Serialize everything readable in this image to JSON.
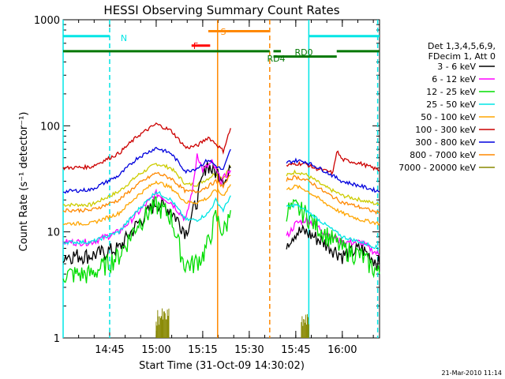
{
  "chart_data": {
    "type": "line",
    "title": "HESSI Observing Summary Count Rates",
    "xlabel": "Start Time (31-Oct-09 14:30:02)",
    "ylabel": "Count Rate (s⁻¹ detector⁻¹)",
    "yscale": "log",
    "xlim": [
      14.5,
      16.2
    ],
    "ylim": [
      1,
      1000
    ],
    "x_ticks": [
      "14:45",
      "15:00",
      "15:15",
      "15:30",
      "15:45",
      "16:00"
    ],
    "x_tick_values": [
      14.75,
      15.0,
      15.25,
      15.5,
      15.75,
      16.0
    ],
    "y_ticks": [
      "1",
      "10",
      "100",
      "1000"
    ],
    "y_tick_values": [
      1,
      10,
      100,
      1000
    ],
    "legend_header": [
      "Det 1,3,4,5,6,9,",
      "FDecim 1, Att 0"
    ],
    "legend_position": "right",
    "footer": "21-Mar-2010 11:14",
    "series": [
      {
        "name": "3 - 6 keV",
        "color": "#000000",
        "values": [
          [
            14.5,
            6
          ],
          [
            14.65,
            6
          ],
          [
            14.8,
            7
          ],
          [
            14.9,
            12
          ],
          [
            15.0,
            19
          ],
          [
            15.08,
            16
          ],
          [
            15.16,
            10
          ],
          [
            15.22,
            20
          ],
          [
            15.27,
            45
          ],
          [
            15.3,
            38
          ],
          [
            15.35,
            35
          ],
          [
            15.38,
            30
          ],
          [
            15.4,
            40
          ],
          [
            15.7,
            8
          ],
          [
            15.75,
            10
          ],
          [
            15.8,
            10
          ],
          [
            15.85,
            9
          ],
          [
            15.9,
            8
          ],
          [
            16.0,
            6
          ],
          [
            16.1,
            7
          ],
          [
            16.2,
            5
          ]
        ]
      },
      {
        "name": "6 - 12 keV",
        "color": "#ff00ff",
        "values": [
          [
            14.5,
            8
          ],
          [
            14.65,
            8
          ],
          [
            14.8,
            10
          ],
          [
            14.9,
            15
          ],
          [
            15.0,
            23
          ],
          [
            15.08,
            19
          ],
          [
            15.16,
            13
          ],
          [
            15.2,
            28
          ],
          [
            15.22,
            55
          ],
          [
            15.25,
            38
          ],
          [
            15.3,
            45
          ],
          [
            15.35,
            30
          ],
          [
            15.38,
            35
          ],
          [
            15.4,
            38
          ],
          [
            15.7,
            9
          ],
          [
            15.75,
            12
          ],
          [
            15.8,
            13
          ],
          [
            15.85,
            12
          ],
          [
            15.9,
            10
          ],
          [
            16.0,
            8
          ],
          [
            16.1,
            8
          ],
          [
            16.2,
            6
          ]
        ]
      },
      {
        "name": "12 - 25 keV",
        "color": "#00dd00",
        "values": [
          [
            14.5,
            4
          ],
          [
            14.65,
            4
          ],
          [
            14.8,
            6
          ],
          [
            14.9,
            12
          ],
          [
            15.0,
            18
          ],
          [
            15.08,
            14
          ],
          [
            15.15,
            5
          ],
          [
            15.2,
            5
          ],
          [
            15.25,
            6
          ],
          [
            15.28,
            8
          ],
          [
            15.32,
            14
          ],
          [
            15.36,
            10
          ],
          [
            15.38,
            12
          ],
          [
            15.4,
            16
          ],
          [
            15.7,
            16
          ],
          [
            15.75,
            17
          ],
          [
            15.8,
            15
          ],
          [
            15.85,
            12
          ],
          [
            15.9,
            10
          ],
          [
            16.0,
            7
          ],
          [
            16.1,
            6
          ],
          [
            16.2,
            4
          ]
        ]
      },
      {
        "name": "25 - 50 keV",
        "color": "#00e5e5",
        "values": [
          [
            14.5,
            8
          ],
          [
            14.65,
            8
          ],
          [
            14.8,
            10
          ],
          [
            14.9,
            16
          ],
          [
            15.0,
            24
          ],
          [
            15.08,
            20
          ],
          [
            15.16,
            13
          ],
          [
            15.22,
            13
          ],
          [
            15.28,
            15
          ],
          [
            15.32,
            20
          ],
          [
            15.36,
            16
          ],
          [
            15.4,
            22
          ],
          [
            15.7,
            17
          ],
          [
            15.75,
            18
          ],
          [
            15.8,
            16
          ],
          [
            15.85,
            14
          ],
          [
            15.9,
            12
          ],
          [
            16.0,
            9
          ],
          [
            16.1,
            8
          ],
          [
            16.2,
            7
          ]
        ]
      },
      {
        "name": "50 - 100 keV",
        "color": "#ffa500",
        "values": [
          [
            14.5,
            12
          ],
          [
            14.65,
            12
          ],
          [
            14.8,
            15
          ],
          [
            14.9,
            22
          ],
          [
            15.0,
            30
          ],
          [
            15.08,
            26
          ],
          [
            15.16,
            19
          ],
          [
            15.22,
            19
          ],
          [
            15.28,
            21
          ],
          [
            15.32,
            25
          ],
          [
            15.36,
            22
          ],
          [
            15.4,
            28
          ],
          [
            15.7,
            25
          ],
          [
            15.75,
            27
          ],
          [
            15.8,
            25
          ],
          [
            15.85,
            22
          ],
          [
            15.9,
            19
          ],
          [
            16.0,
            15
          ],
          [
            16.1,
            13
          ],
          [
            16.2,
            12
          ]
        ]
      },
      {
        "name": "100 - 300 keV",
        "color": "#cc0000",
        "values": [
          [
            14.5,
            40
          ],
          [
            14.65,
            41
          ],
          [
            14.8,
            55
          ],
          [
            14.9,
            80
          ],
          [
            15.0,
            104
          ],
          [
            15.08,
            90
          ],
          [
            15.16,
            62
          ],
          [
            15.22,
            65
          ],
          [
            15.28,
            78
          ],
          [
            15.32,
            68
          ],
          [
            15.36,
            58
          ],
          [
            15.4,
            95
          ],
          [
            15.7,
            42
          ],
          [
            15.75,
            44
          ],
          [
            15.8,
            44
          ],
          [
            15.85,
            40
          ],
          [
            15.9,
            38
          ],
          [
            15.95,
            36
          ],
          [
            15.97,
            58
          ],
          [
            16.0,
            48
          ],
          [
            16.1,
            44
          ],
          [
            16.2,
            38
          ]
        ]
      },
      {
        "name": "300 - 800 keV",
        "color": "#0000dd",
        "values": [
          [
            14.5,
            24
          ],
          [
            14.65,
            25
          ],
          [
            14.8,
            34
          ],
          [
            14.9,
            50
          ],
          [
            15.0,
            62
          ],
          [
            15.08,
            55
          ],
          [
            15.16,
            37
          ],
          [
            15.22,
            40
          ],
          [
            15.28,
            48
          ],
          [
            15.32,
            42
          ],
          [
            15.36,
            38
          ],
          [
            15.4,
            60
          ],
          [
            15.7,
            45
          ],
          [
            15.75,
            47
          ],
          [
            15.8,
            46
          ],
          [
            15.85,
            42
          ],
          [
            15.9,
            38
          ],
          [
            16.0,
            30
          ],
          [
            16.1,
            27
          ],
          [
            16.2,
            24
          ]
        ]
      },
      {
        "name": "800 - 7000 keV",
        "color": "#ff8800",
        "values": [
          [
            14.5,
            16
          ],
          [
            14.65,
            16
          ],
          [
            14.8,
            20
          ],
          [
            14.9,
            28
          ],
          [
            15.0,
            36
          ],
          [
            15.08,
            32
          ],
          [
            15.16,
            24
          ],
          [
            15.22,
            24
          ],
          [
            15.28,
            27
          ],
          [
            15.32,
            30
          ],
          [
            15.36,
            27
          ],
          [
            15.4,
            34
          ],
          [
            15.7,
            31
          ],
          [
            15.75,
            33
          ],
          [
            15.8,
            31
          ],
          [
            15.85,
            28
          ],
          [
            15.9,
            24
          ],
          [
            16.0,
            19
          ],
          [
            16.1,
            17
          ],
          [
            16.2,
            15
          ]
        ]
      },
      {
        "name": "7000 - 20000 keV",
        "color": "#888800",
        "values": [
          [
            15.0,
            1.6
          ],
          [
            15.02,
            1.8
          ],
          [
            15.04,
            1.5
          ],
          [
            15.06,
            1.7
          ],
          [
            15.79,
            1.6
          ],
          [
            15.81,
            1.5
          ]
        ]
      }
    ],
    "yellow_series": {
      "color": "#cccc00",
      "values": [
        [
          14.5,
          18
        ],
        [
          14.65,
          18
        ],
        [
          14.8,
          24
        ],
        [
          14.9,
          34
        ],
        [
          15.0,
          44
        ],
        [
          15.08,
          40
        ],
        [
          15.16,
          28
        ],
        [
          15.22,
          28
        ],
        [
          15.28,
          32
        ],
        [
          15.32,
          36
        ],
        [
          15.36,
          32
        ],
        [
          15.4,
          42
        ],
        [
          15.7,
          34
        ],
        [
          15.75,
          37
        ],
        [
          15.8,
          35
        ],
        [
          15.85,
          31
        ],
        [
          15.9,
          27
        ],
        [
          16.0,
          22
        ],
        [
          16.1,
          20
        ],
        [
          16.2,
          18
        ]
      ]
    },
    "flags": [
      {
        "label": "N",
        "color": "#00e5e5",
        "segments": [
          [
            14.5,
            14.75
          ],
          [
            15.82,
            16.2
          ]
        ],
        "y": 700
      },
      {
        "label": "S",
        "color": "#ff8800",
        "segments": [
          [
            15.28,
            15.61
          ]
        ],
        "y": 780
      },
      {
        "label": "F",
        "color": "#ff0000",
        "segments": [
          [
            15.19,
            15.29
          ]
        ],
        "y": 570
      },
      {
        "label": "RD0",
        "color": "#007700",
        "segments": [
          [
            14.5,
            15.61
          ],
          [
            15.63,
            15.67
          ],
          [
            15.97,
            16.2
          ]
        ],
        "y": 505
      },
      {
        "label": "RD4",
        "color": "#007700",
        "segments": [
          [
            15.63,
            15.97
          ]
        ],
        "y": 450
      }
    ],
    "vlines": [
      {
        "x": 14.5,
        "color": "#00e5e5",
        "style": "solid"
      },
      {
        "x": 14.75,
        "color": "#00e5e5",
        "style": "dashed"
      },
      {
        "x": 15.33,
        "color": "#ff8800",
        "style": "solid"
      },
      {
        "x": 15.61,
        "color": "#ff8800",
        "style": "dashed"
      },
      {
        "x": 15.82,
        "color": "#00e5e5",
        "style": "solid"
      },
      {
        "x": 16.19,
        "color": "#00e5e5",
        "style": "dashed"
      }
    ]
  }
}
